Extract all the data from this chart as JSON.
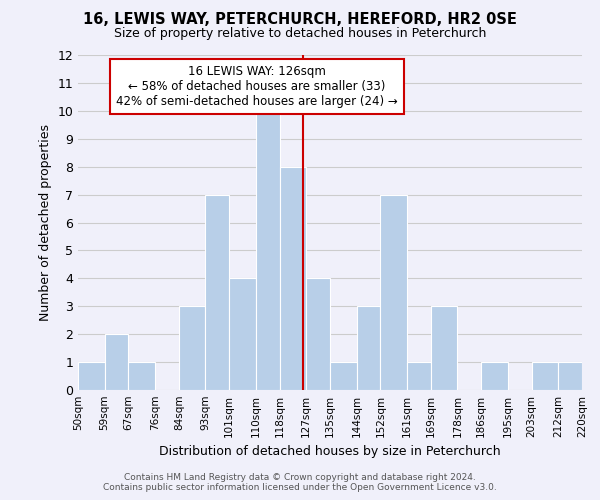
{
  "title": "16, LEWIS WAY, PETERCHURCH, HEREFORD, HR2 0SE",
  "subtitle": "Size of property relative to detached houses in Peterchurch",
  "xlabel": "Distribution of detached houses by size in Peterchurch",
  "ylabel": "Number of detached properties",
  "bin_labels": [
    "50sqm",
    "59sqm",
    "67sqm",
    "76sqm",
    "84sqm",
    "93sqm",
    "101sqm",
    "110sqm",
    "118sqm",
    "127sqm",
    "135sqm",
    "144sqm",
    "152sqm",
    "161sqm",
    "169sqm",
    "178sqm",
    "186sqm",
    "195sqm",
    "203sqm",
    "212sqm",
    "220sqm"
  ],
  "bin_edges": [
    50,
    59,
    67,
    76,
    84,
    93,
    101,
    110,
    118,
    127,
    135,
    144,
    152,
    161,
    169,
    178,
    186,
    195,
    203,
    212,
    220
  ],
  "bar_heights": [
    1,
    2,
    1,
    0,
    3,
    7,
    4,
    10,
    8,
    4,
    1,
    3,
    7,
    1,
    3,
    0,
    1,
    0,
    1,
    1
  ],
  "bar_color": "#b8cfe8",
  "bar_edgecolor": "#ffffff",
  "ref_line_x": 126,
  "ref_line_color": "#cc0000",
  "ylim": [
    0,
    12
  ],
  "yticks": [
    0,
    1,
    2,
    3,
    4,
    5,
    6,
    7,
    8,
    9,
    10,
    11,
    12
  ],
  "grid_color": "#cccccc",
  "annotation_title": "16 LEWIS WAY: 126sqm",
  "annotation_line1": "← 58% of detached houses are smaller (33)",
  "annotation_line2": "42% of semi-detached houses are larger (24) →",
  "annotation_box_color": "#ffffff",
  "annotation_box_edgecolor": "#cc0000",
  "footer_line1": "Contains HM Land Registry data © Crown copyright and database right 2024.",
  "footer_line2": "Contains public sector information licensed under the Open Government Licence v3.0.",
  "background_color": "#f0f0fa"
}
